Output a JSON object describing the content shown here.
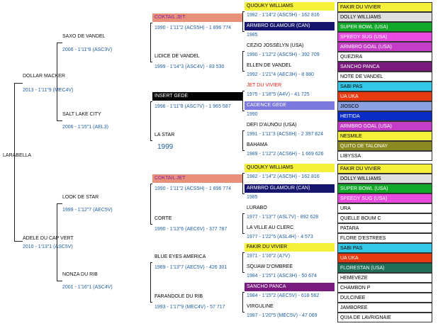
{
  "root": {
    "name": "LARABELLA",
    "year": "1999"
  },
  "sire": {
    "name": "DOLLAR MACKER",
    "detail": "2013 - 1'11\"9 (MEC4V)"
  },
  "dam": {
    "name": "ADELE DU CAP VERT",
    "detail": "2010 - 1'13\"1 (ASC5V)"
  },
  "g3": [
    {
      "name": "SAXO DE VANDEL",
      "detail": "2006 - 1'11\"8 (ASC3V)"
    },
    {
      "name": "SALT LAKE CITY",
      "detail": "2006 - 1'15\"1 (AEL3)"
    },
    {
      "name": "LOOK DE STAR",
      "detail": "1999 - 1'12\"7 (AEC5V)"
    },
    {
      "name": "NONZA DU RIB",
      "detail": "2001 - 1'16\"1 (ASC4V)"
    }
  ],
  "g4": [
    {
      "name": "COKTAIL JET",
      "detail": "1990 - 1'11\"2 (ACS5H) - 1 896 774",
      "bg": "#e8907a"
    },
    {
      "name": "LIDICE DE VANDEL",
      "detail": "1999 - 1'14\"3 (ASC4V) - 83 530",
      "bg": ""
    },
    {
      "name": "INSERT GEDE",
      "detail": "1996 - 1'11\"8 (ASC7V) - 1 965 587",
      "bg": "#000000"
    },
    {
      "name": "LA STAR",
      "detail": "",
      "bg": ""
    },
    {
      "name": "COKTAIL JET",
      "detail": "1990 - 1'11\"2 (ACS5H) - 1 896 774",
      "bg": "#e8907a"
    },
    {
      "name": "CORTE",
      "detail": "1990 - 1'13\"6 (AEC6V) - 377 787",
      "bg": ""
    },
    {
      "name": "BLUE EYES AMERICA",
      "detail": "1989 - 1'13\"7 (AEC5V) - 426 301",
      "bg": ""
    },
    {
      "name": "FARANDOLE DU RIB",
      "detail": "1993 - 1'17\"9 (MEC4V) - 57 717",
      "bg": ""
    }
  ],
  "g5": [
    {
      "name": "QUOUKY WILLIAMS",
      "detail": "1982 - 1'14\"2 (ASC5H) - 162 816",
      "bg": "#f5f03a"
    },
    {
      "name": "ARMBRO GLAMOUR (CAN)",
      "detail": "1985",
      "bg": "#16166e"
    },
    {
      "name": "CEZIO JOSSELYN (USA)",
      "detail": "1990 - 1'12\"2 (ASC5H) - 392 709",
      "bg": ""
    },
    {
      "name": "ELLEN DE VANDEL",
      "detail": "1992 - 1'21\"4 (AEC3H) - 8 880",
      "bg": ""
    },
    {
      "name": "JET DU VIVIER",
      "detail": "1975 - 1'18\"5 (A4V) - 41 725",
      "bg": ""
    },
    {
      "name": "CADENCE GEDE",
      "detail": "1990",
      "bg": "#7b78e0"
    },
    {
      "name": "DEFI D'AUNOU (USA)",
      "detail": "1991 - 1'11\"3 (ACS6H) - 2 397 824",
      "bg": ""
    },
    {
      "name": "BAHAMA",
      "detail": "1989 - 1'12\"2 (ACS6H) - 1 669 626",
      "bg": ""
    },
    {
      "name": "QUOUKY WILLIAMS",
      "detail": "1982 - 1'14\"2 (ASC5H) - 162 816",
      "bg": "#f5f03a"
    },
    {
      "name": "ARMBRO GLAMOUR (CAN)",
      "detail": "1985",
      "bg": "#16166e"
    },
    {
      "name": "LURABO",
      "detail": "1977 - 1'13\"7 (ASL7V) - 892 628",
      "bg": ""
    },
    {
      "name": "LA VILLE AU CLERC",
      "detail": "1977 - 1'22\"5 (ASL4H) - 4 573",
      "bg": ""
    },
    {
      "name": "FAKIR DU VIVIER",
      "detail": "1971 - 1'16\"2 (A7V)",
      "bg": "#f5f03a"
    },
    {
      "name": "SQUAW D'OMBREE",
      "detail": "1984 - 1'15\"1 (ASC3H) - 50 674",
      "bg": ""
    },
    {
      "name": "SANCHO PANCA",
      "detail": "1984 - 1'15\"2 (AEC5V) - 618 562",
      "bg": "#7a1a7e"
    },
    {
      "name": "VIRGULINE",
      "detail": "1987 - 1'20\"5 (MEC5V) - 47 069",
      "bg": ""
    }
  ],
  "g6": [
    {
      "name": "FAKIR DU VIVIER",
      "bg": "#f5f03a"
    },
    {
      "name": "DOLLY WILLIAMS",
      "bg": "#e0e0e0"
    },
    {
      "name": "SUPER BOWL (USA)",
      "bg": "#11a82a"
    },
    {
      "name": "SPEEDY SUG (USA)",
      "bg": "#e84ae0"
    },
    {
      "name": "ARMBRO GOAL (USA)",
      "bg": "#c53cc6"
    },
    {
      "name": "QUEZIRA",
      "bg": ""
    },
    {
      "name": "SANCHO PANCA",
      "bg": "#7a1a7e"
    },
    {
      "name": "NOTE DE VANDEL",
      "bg": ""
    },
    {
      "name": "SABI PAS",
      "bg": "#34c8e8"
    },
    {
      "name": "UA UKA",
      "bg": "#e83a10"
    },
    {
      "name": "JIOSCO",
      "bg": "#8aa0e0"
    },
    {
      "name": "HEITIDA",
      "bg": "#0a2cc6"
    },
    {
      "name": "ARMBRO GOAL (USA)",
      "bg": "#c53cc6"
    },
    {
      "name": "NESMILE",
      "bg": "#f5f03a"
    },
    {
      "name": "QUITO DE TALONAY",
      "bg": "#8a8a20"
    },
    {
      "name": "LIBYSSA",
      "bg": ""
    },
    {
      "name": "FAKIR DU VIVIER",
      "bg": "#f5f03a"
    },
    {
      "name": "DOLLY WILLIAMS",
      "bg": "#e0e0e0"
    },
    {
      "name": "SUPER BOWL (USA)",
      "bg": "#11a82a"
    },
    {
      "name": "SPEEDY SUG (USA)",
      "bg": "#e84ae0"
    },
    {
      "name": "URA",
      "bg": ""
    },
    {
      "name": "QUELLE BOUM C",
      "bg": ""
    },
    {
      "name": "PATARA",
      "bg": ""
    },
    {
      "name": "FLORE D'ESTREES",
      "bg": ""
    },
    {
      "name": "SABI PAS",
      "bg": "#34c8e8"
    },
    {
      "name": "UA UKA",
      "bg": "#e83a10"
    },
    {
      "name": "FLORESTAN (USA)",
      "bg": "#1f6e58"
    },
    {
      "name": "HEMEVEZE",
      "bg": ""
    },
    {
      "name": "CHAMBON P",
      "bg": ""
    },
    {
      "name": "DULCINEE",
      "bg": ""
    },
    {
      "name": "JAMBOREE",
      "bg": ""
    },
    {
      "name": "QUIA DE LAVRIGNAIE",
      "bg": ""
    }
  ]
}
